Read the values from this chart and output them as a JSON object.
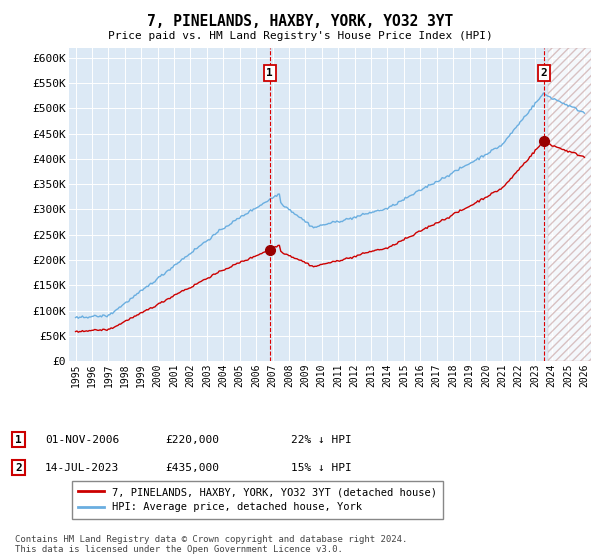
{
  "title": "7, PINELANDS, HAXBY, YORK, YO32 3YT",
  "subtitle": "Price paid vs. HM Land Registry's House Price Index (HPI)",
  "ylabel_ticks": [
    "£0",
    "£50K",
    "£100K",
    "£150K",
    "£200K",
    "£250K",
    "£300K",
    "£350K",
    "£400K",
    "£450K",
    "£500K",
    "£550K",
    "£600K"
  ],
  "ytick_values": [
    0,
    50000,
    100000,
    150000,
    200000,
    250000,
    300000,
    350000,
    400000,
    450000,
    500000,
    550000,
    600000
  ],
  "ylim": [
    0,
    620000
  ],
  "x_start_year": 1995,
  "x_end_year": 2026,
  "background_color": "#dce9f5",
  "plot_bg_color": "#dce9f5",
  "hpi_line_color": "#6aaee0",
  "price_line_color": "#cc0000",
  "t1_year": 2006.83,
  "t1_price": 220000,
  "t2_year": 2023.54,
  "t2_price": 435000,
  "vline_color": "#dd0000",
  "legend_label1": "7, PINELANDS, HAXBY, YORK, YO32 3YT (detached house)",
  "legend_label2": "HPI: Average price, detached house, York",
  "t1_date": "01-NOV-2006",
  "t1_pct": "22% ↓ HPI",
  "t2_date": "14-JUL-2023",
  "t2_pct": "15% ↓ HPI",
  "t1_price_str": "£220,000",
  "t2_price_str": "£435,000",
  "footnote": "Contains HM Land Registry data © Crown copyright and database right 2024.\nThis data is licensed under the Open Government Licence v3.0.",
  "hatch_color": "#ccaaaa"
}
